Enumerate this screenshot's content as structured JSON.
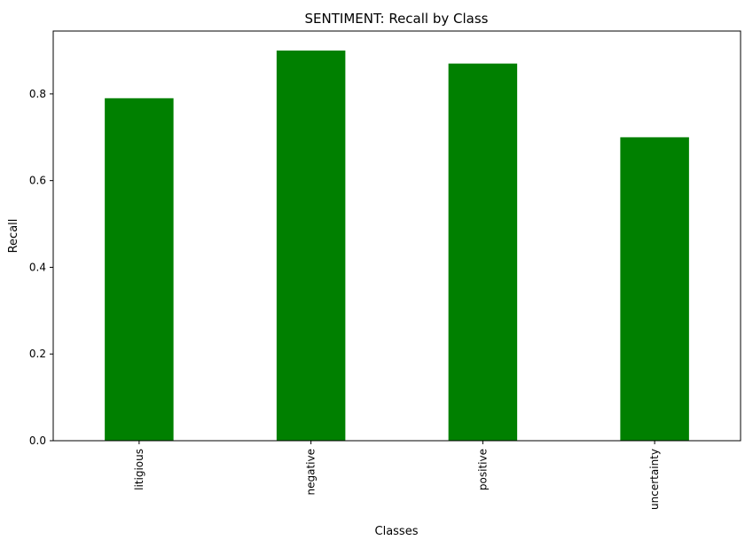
{
  "chart_data": {
    "type": "bar",
    "title": "SENTIMENT: Recall by Class",
    "xlabel": "Classes",
    "ylabel": "Recall",
    "categories": [
      "litigious",
      "negative",
      "positive",
      "uncertainty"
    ],
    "values": [
      0.79,
      0.9,
      0.87,
      0.7
    ],
    "ylim": [
      0,
      0.945
    ],
    "yticks": [
      "0.0",
      "0.2",
      "0.4",
      "0.6",
      "0.8"
    ],
    "grid": false,
    "legend": "none",
    "bar_color": "#008000"
  }
}
